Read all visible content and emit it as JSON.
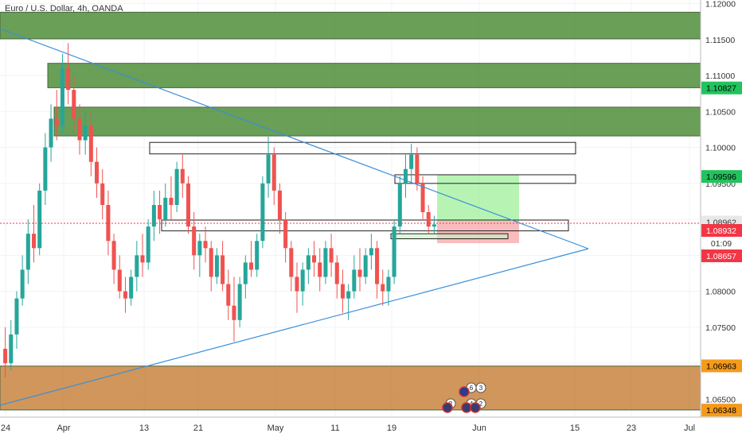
{
  "header": {
    "title": "Euro / U.S. Dollar, 4h, OANDA"
  },
  "chart_data": {
    "type": "candlestick",
    "title": "Euro / U.S. Dollar, 4h, OANDA",
    "ylim": [
      1.0625,
      1.1205
    ],
    "y_ticks": [
      "1.12000",
      "1.11500",
      "1.11000",
      "1.10500",
      "1.10000",
      "1.09500",
      "1.09000",
      "1.08500",
      "1.08000",
      "1.07500",
      "1.07000",
      "1.06500"
    ],
    "x_ticks": [
      "24",
      "Apr",
      "13",
      "21",
      "May",
      "11",
      "19",
      "Jun",
      "15",
      "23",
      "Jul"
    ],
    "price_tags": [
      {
        "label": "1.10827",
        "color": "#22c35e",
        "text_color": "#000000"
      },
      {
        "label": "1.09596",
        "color": "#22c35e",
        "text_color": "#000000"
      },
      {
        "label": "1.08962",
        "color": "#e8e8e8",
        "text_color": "#333333"
      },
      {
        "label": "1.08932",
        "color": "#f23645",
        "text_color": "#ffffff"
      },
      {
        "label": "01:09",
        "color": "#ffffff",
        "text_color": "#333333"
      },
      {
        "label": "1.08657",
        "color": "#f23645",
        "text_color": "#ffffff"
      },
      {
        "label": "1.06963",
        "color": "#f59a1b",
        "text_color": "#000000"
      },
      {
        "label": "1.06348",
        "color": "#f59a1b",
        "text_color": "#000000"
      }
    ],
    "zones": [
      {
        "name": "supply-zone-top",
        "y_top": 1.1188,
        "y_bottom": 1.1151,
        "color": "#4f8f3a"
      },
      {
        "name": "supply-zone-mid",
        "y_top": 1.1117,
        "y_bottom": 1.1083,
        "color": "#4f8f3a"
      },
      {
        "name": "supply-zone-low",
        "y_top": 1.1056,
        "y_bottom": 1.1016,
        "color": "#4f8f3a"
      },
      {
        "name": "demand-zone",
        "y_top": 1.0696,
        "y_bottom": 1.0635,
        "color": "#c8843f"
      }
    ],
    "levels": [
      {
        "name": "resistance-box-high",
        "y_top": 1.1007,
        "y_bottom": 1.0991
      },
      {
        "name": "resistance-box-mid",
        "y_top": 1.0962,
        "y_bottom": 1.095
      },
      {
        "name": "support-box",
        "y_top": 1.0899,
        "y_bottom": 1.0884
      },
      {
        "name": "support-box-small",
        "y_top": 1.088,
        "y_bottom": 1.0873
      }
    ],
    "current_price": 1.08932,
    "event_badges": [
      "6",
      "3",
      "2",
      "4",
      "2"
    ],
    "candles": [
      [
        1.072,
        1.075,
        1.068,
        1.07
      ],
      [
        1.07,
        1.076,
        1.069,
        1.074
      ],
      [
        1.074,
        1.08,
        1.072,
        1.079
      ],
      [
        1.079,
        1.085,
        1.078,
        1.083
      ],
      [
        1.083,
        1.09,
        1.081,
        1.088
      ],
      [
        1.088,
        1.092,
        1.084,
        1.086
      ],
      [
        1.086,
        1.095,
        1.085,
        1.094
      ],
      [
        1.094,
        1.102,
        1.092,
        1.1
      ],
      [
        1.1,
        1.106,
        1.098,
        1.104
      ],
      [
        1.104,
        1.108,
        1.101,
        1.103
      ],
      [
        1.103,
        1.113,
        1.102,
        1.111
      ],
      [
        1.111,
        1.1145,
        1.106,
        1.108
      ],
      [
        1.108,
        1.11,
        1.102,
        1.104
      ],
      [
        1.104,
        1.106,
        1.099,
        1.101
      ],
      [
        1.101,
        1.105,
        1.099,
        1.103
      ],
      [
        1.103,
        1.105,
        1.096,
        1.098
      ],
      [
        1.098,
        1.1,
        1.093,
        1.095
      ],
      [
        1.095,
        1.097,
        1.09,
        1.092
      ],
      [
        1.092,
        1.094,
        1.085,
        1.087
      ],
      [
        1.087,
        1.088,
        1.081,
        1.083
      ],
      [
        1.083,
        1.085,
        1.079,
        1.08
      ],
      [
        1.08,
        1.082,
        1.077,
        1.079
      ],
      [
        1.079,
        1.083,
        1.078,
        1.082
      ],
      [
        1.082,
        1.087,
        1.08,
        1.085
      ],
      [
        1.085,
        1.088,
        1.082,
        1.084
      ],
      [
        1.084,
        1.09,
        1.083,
        1.089
      ],
      [
        1.089,
        1.094,
        1.087,
        1.092
      ],
      [
        1.092,
        1.094,
        1.088,
        1.09
      ],
      [
        1.09,
        1.095,
        1.089,
        1.093
      ],
      [
        1.093,
        1.096,
        1.09,
        1.092
      ],
      [
        1.092,
        1.098,
        1.091,
        1.097
      ],
      [
        1.097,
        1.099,
        1.093,
        1.095
      ],
      [
        1.095,
        1.096,
        1.088,
        1.089
      ],
      [
        1.089,
        1.091,
        1.083,
        1.085
      ],
      [
        1.085,
        1.088,
        1.082,
        1.087
      ],
      [
        1.087,
        1.089,
        1.084,
        1.086
      ],
      [
        1.086,
        1.087,
        1.08,
        1.082
      ],
      [
        1.082,
        1.086,
        1.081,
        1.085
      ],
      [
        1.085,
        1.087,
        1.08,
        1.081
      ],
      [
        1.081,
        1.083,
        1.076,
        1.078
      ],
      [
        1.078,
        1.082,
        1.073,
        1.076
      ],
      [
        1.076,
        1.082,
        1.075,
        1.081
      ],
      [
        1.081,
        1.085,
        1.079,
        1.084
      ],
      [
        1.084,
        1.087,
        1.082,
        1.083
      ],
      [
        1.083,
        1.088,
        1.082,
        1.087
      ],
      [
        1.087,
        1.096,
        1.086,
        1.095
      ],
      [
        1.095,
        1.1015,
        1.093,
        1.099
      ],
      [
        1.099,
        1.1,
        1.092,
        1.094
      ],
      [
        1.094,
        1.095,
        1.088,
        1.09
      ],
      [
        1.09,
        1.091,
        1.084,
        1.086
      ],
      [
        1.086,
        1.087,
        1.08,
        1.082
      ],
      [
        1.082,
        1.084,
        1.077,
        1.08
      ],
      [
        1.08,
        1.084,
        1.078,
        1.083
      ],
      [
        1.083,
        1.086,
        1.081,
        1.085
      ],
      [
        1.085,
        1.087,
        1.082,
        1.084
      ],
      [
        1.084,
        1.086,
        1.08,
        1.082
      ],
      [
        1.082,
        1.087,
        1.081,
        1.086
      ],
      [
        1.086,
        1.088,
        1.082,
        1.084
      ],
      [
        1.084,
        1.085,
        1.079,
        1.081
      ],
      [
        1.081,
        1.083,
        1.077,
        1.079
      ],
      [
        1.079,
        1.081,
        1.076,
        1.08
      ],
      [
        1.08,
        1.085,
        1.079,
        1.083
      ],
      [
        1.083,
        1.086,
        1.08,
        1.082
      ],
      [
        1.082,
        1.086,
        1.081,
        1.085
      ],
      [
        1.085,
        1.088,
        1.083,
        1.086
      ],
      [
        1.086,
        1.087,
        1.079,
        1.081
      ],
      [
        1.081,
        1.083,
        1.078,
        1.08
      ],
      [
        1.08,
        1.083,
        1.078,
        1.082
      ],
      [
        1.082,
        1.09,
        1.081,
        1.089
      ],
      [
        1.089,
        1.096,
        1.088,
        1.095
      ],
      [
        1.095,
        1.099,
        1.093,
        1.097
      ],
      [
        1.097,
        1.1005,
        1.095,
        1.099
      ],
      [
        1.099,
        1.1,
        1.094,
        1.095
      ],
      [
        1.095,
        1.096,
        1.09,
        1.091
      ],
      [
        1.091,
        1.092,
        1.088,
        1.089
      ],
      [
        1.089,
        1.0905,
        1.088,
        1.0893
      ]
    ]
  }
}
